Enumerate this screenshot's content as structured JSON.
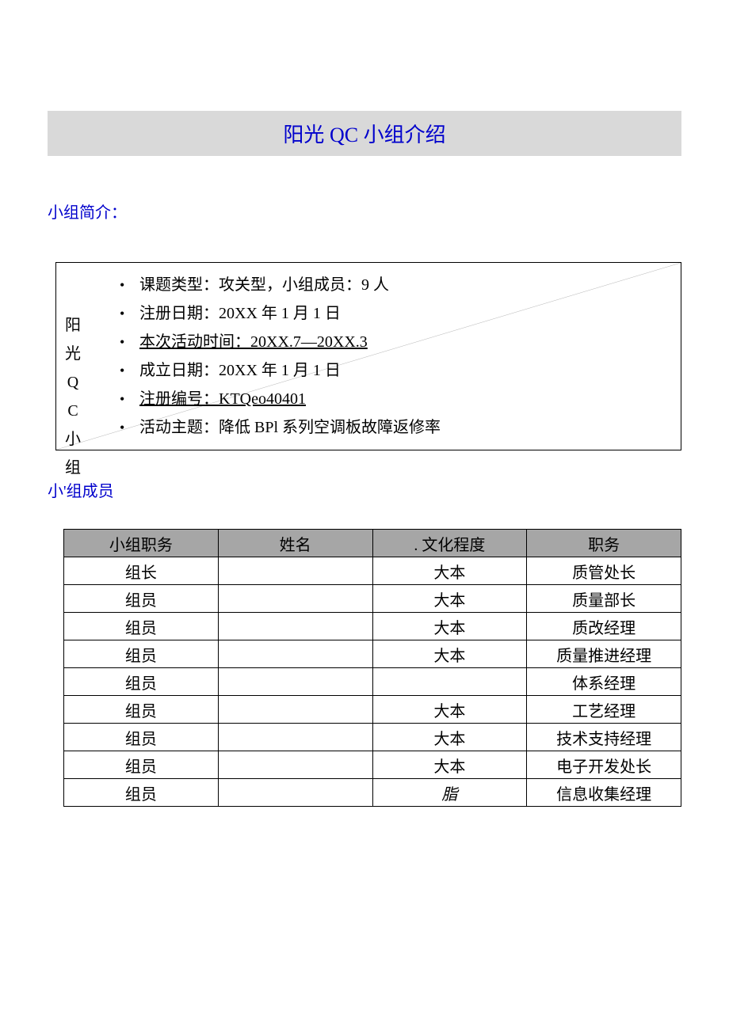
{
  "title": {
    "prefix": "阳光 ",
    "qc": "QC",
    "suffix": " 小组介绍"
  },
  "section_intro_label": "小组简介：",
  "vertical_label_chars": [
    "阳",
    "光",
    "Q",
    "C",
    "小",
    "组"
  ],
  "info_items": [
    {
      "text": "课题类型：攻关型，小组成员：9 人",
      "underline": false
    },
    {
      "text": "注册日期：20XX 年 1 月 1 日",
      "underline": false
    },
    {
      "text": "本次活动时间：20XX.7—20XX.3",
      "underline": true
    },
    {
      "text": "成立日期：20XX 年 1 月 1 日",
      "underline": false
    },
    {
      "text": "注册编号：KTQeo40401",
      "underline": true
    },
    {
      "text": "活动主题：降低 BPl 系列空调板故障返修率",
      "underline": false
    }
  ],
  "members_label": "小'组成员",
  "members_table": {
    "headers": [
      "小组职务",
      "姓名",
      ". 文化程度",
      "职务"
    ],
    "rows": [
      [
        "组长",
        "",
        "大本",
        "质管处长"
      ],
      [
        "组员",
        "",
        "大本",
        "质量部长"
      ],
      [
        "组员",
        "",
        "大本",
        "质改经理"
      ],
      [
        "组员",
        "",
        "大本",
        "质量推进经理"
      ],
      [
        "组员",
        "",
        "",
        "体系经理"
      ],
      [
        "组员",
        "",
        "大本",
        "工艺经理"
      ],
      [
        "组员",
        "",
        "大本",
        "技术支持经理"
      ],
      [
        "组员",
        "",
        "大本",
        "电子开发处长"
      ],
      [
        "组员",
        "",
        "脂",
        "信息收集经理"
      ]
    ],
    "italic_cells": [
      [
        8,
        2
      ]
    ]
  },
  "colors": {
    "title_banner_bg": "#d9d9d9",
    "accent_text": "#0000cc",
    "table_header_bg": "#a6a6a6",
    "border": "#000000",
    "background": "#ffffff"
  }
}
